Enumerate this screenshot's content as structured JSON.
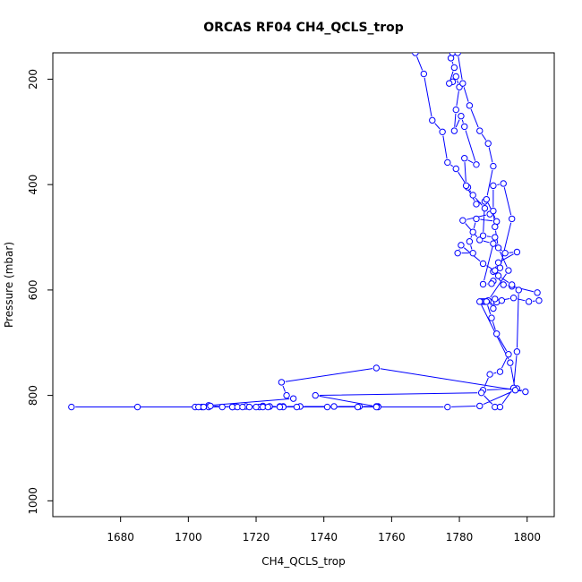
{
  "chart_data": {
    "type": "line",
    "title": "ORCAS RF04 CH4_QCLS_trop",
    "xlabel": "CH4_QCLS_trop",
    "ylabel": "Pressure (mbar)",
    "xlim": [
      1660,
      1808
    ],
    "ylim": [
      1030,
      150
    ],
    "y_reversed": true,
    "grid": false,
    "x_ticks": [
      1680,
      1700,
      1720,
      1740,
      1760,
      1780,
      1800
    ],
    "y_ticks": [
      200,
      400,
      600,
      800,
      1000
    ],
    "series": [
      {
        "color": "#0000ff",
        "marker": "open-circle",
        "points": [
          [
            1767.0,
            150
          ],
          [
            1769.5,
            190
          ],
          [
            1772.0,
            278
          ],
          [
            1775.0,
            300
          ],
          [
            1776.5,
            358
          ],
          [
            1779.0,
            370
          ],
          [
            1782.5,
            405
          ],
          [
            1784.0,
            420
          ],
          [
            1787.5,
            445
          ],
          [
            1789.0,
            456
          ],
          [
            1781.0,
            468
          ],
          [
            1786.0,
            505
          ],
          [
            1790.0,
            512
          ],
          [
            1793.5,
            530
          ],
          [
            1797.0,
            528
          ],
          [
            1791.5,
            548
          ],
          [
            1790.0,
            565
          ],
          [
            1793.0,
            590
          ],
          [
            1795.5,
            593
          ],
          [
            1803.0,
            605
          ],
          [
            1803.5,
            620
          ],
          [
            1800.5,
            622
          ],
          [
            1796.0,
            615
          ],
          [
            1790.0,
            622
          ],
          [
            1787.0,
            622
          ],
          [
            1786.5,
            622
          ],
          [
            1787.5,
            622
          ],
          [
            1788.0,
            622
          ],
          [
            1789.5,
            653
          ],
          [
            1791.0,
            683
          ],
          [
            1794.5,
            722
          ],
          [
            1792.0,
            755
          ],
          [
            1789.0,
            760
          ],
          [
            1787.0,
            790
          ],
          [
            1797.0,
            787
          ],
          [
            1799.5,
            793
          ],
          [
            1755.5,
            748
          ],
          [
            1727.5,
            775
          ],
          [
            1729.0,
            800
          ],
          [
            1731.0,
            806
          ],
          [
            1706.0,
            819
          ],
          [
            1702.0,
            822
          ],
          [
            1704.0,
            822
          ],
          [
            1714.0,
            821
          ],
          [
            1722.0,
            820
          ],
          [
            1724.0,
            821
          ],
          [
            1717.0,
            821
          ],
          [
            1727.0,
            821
          ],
          [
            1728.0,
            821
          ],
          [
            1733.0,
            821
          ],
          [
            1743.0,
            821
          ],
          [
            1750.5,
            821
          ],
          [
            1756.0,
            821
          ],
          [
            1756.0,
            822
          ],
          [
            1755.5,
            821
          ],
          [
            1737.5,
            800
          ],
          [
            1786.5,
            795
          ],
          [
            1790.5,
            822
          ],
          [
            1792.0,
            822
          ],
          [
            1796.0,
            786
          ],
          [
            1797.0,
            717
          ],
          [
            1797.5,
            600
          ],
          [
            1795.5,
            590
          ],
          [
            1791.5,
            573
          ],
          [
            1790.0,
            583
          ],
          [
            1789.5,
            588
          ],
          [
            1787.0,
            589
          ],
          [
            1790.5,
            500
          ],
          [
            1787.0,
            497
          ],
          [
            1787.5,
            432
          ],
          [
            1785.0,
            437
          ],
          [
            1782.0,
            402
          ],
          [
            1781.5,
            350
          ],
          [
            1785.0,
            362
          ],
          [
            1781.5,
            290
          ],
          [
            1780.5,
            270
          ],
          [
            1778.5,
            298
          ],
          [
            1779.0,
            258
          ],
          [
            1780.0,
            215
          ],
          [
            1779.0,
            195
          ],
          [
            1778.0,
            205
          ],
          [
            1777.0,
            208
          ],
          [
            1778.5,
            178
          ],
          [
            1777.5,
            160
          ],
          [
            1778.0,
            150
          ],
          [
            1779.5,
            150
          ],
          [
            1781.0,
            208
          ],
          [
            1783.0,
            250
          ],
          [
            1786.0,
            298
          ],
          [
            1788.5,
            322
          ],
          [
            1790.0,
            365
          ],
          [
            1788.0,
            428
          ],
          [
            1791.0,
            470
          ],
          [
            1785.0,
            465
          ],
          [
            1784.0,
            490
          ],
          [
            1783.0,
            508
          ],
          [
            1784.0,
            530
          ],
          [
            1779.5,
            530
          ],
          [
            1780.5,
            515
          ],
          [
            1787.0,
            550
          ],
          [
            1790.5,
            563
          ],
          [
            1792.0,
            558
          ],
          [
            1795.5,
            465
          ],
          [
            1793.0,
            398
          ],
          [
            1790.0,
            402
          ],
          [
            1790.0,
            450
          ],
          [
            1790.5,
            480
          ],
          [
            1791.5,
            520
          ],
          [
            1794.5,
            563
          ],
          [
            1788.5,
            620
          ],
          [
            1790.0,
            635
          ],
          [
            1791.0,
            623
          ],
          [
            1792.5,
            620
          ],
          [
            1790.5,
            617
          ],
          [
            1788.0,
            622
          ],
          [
            1788.0,
            622
          ],
          [
            1786.0,
            622
          ],
          [
            1795.0,
            738
          ],
          [
            1796.5,
            790
          ],
          [
            1786.0,
            820
          ],
          [
            1776.5,
            822
          ],
          [
            1750.0,
            822
          ],
          [
            1741.0,
            822
          ],
          [
            1728.0,
            822
          ],
          [
            1721.0,
            822
          ],
          [
            1718.0,
            822
          ],
          [
            1713.0,
            822
          ],
          [
            1710.0,
            822
          ],
          [
            1706.0,
            822
          ],
          [
            1703.0,
            822
          ],
          [
            1685.0,
            822
          ],
          [
            1665.5,
            822
          ],
          [
            1704.5,
            822
          ],
          [
            1706.5,
            820
          ],
          [
            1713.0,
            822
          ],
          [
            1714.5,
            822
          ],
          [
            1716.0,
            822
          ],
          [
            1720.0,
            822
          ],
          [
            1722.0,
            822
          ],
          [
            1723.5,
            822
          ],
          [
            1727.0,
            822
          ],
          [
            1732.0,
            822
          ],
          [
            1755.5,
            822
          ]
        ]
      }
    ]
  }
}
